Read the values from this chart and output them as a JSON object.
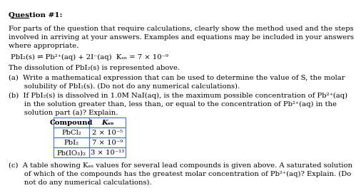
{
  "title": "Question #1:",
  "intro": "For parts of the question that require calculations, clearly show the method used and the steps\ninvolved in arriving at your answers. Examples and equations may be included in your answers\nwhere appropriate.",
  "equation": "PbI₂(s) ⇌ Pb²⁺(aq) + 2I⁻(aq)  Kₛₙ = 7 × 10⁻⁹",
  "dissolution": "The dissolution of PbI₂(s) is represented above.",
  "part_a": "(a)  Write a mathematical expression that can be used to determine the value of S, the molar\n       solubility of PbI₂(s). (Do not do any numerical calculations).",
  "part_b": "(b)  If PbI₂(s) is dissolved in 1.0M NaI(aq), is the maximum possible concentration of Pb²⁺(aq)\n       in the solution greater than, less than, or equal to the concentration of Pb²⁺(aq) in the\n       solution part (a)? Explain.",
  "table_headers": [
    "Compound",
    "Kₛₙ"
  ],
  "table_rows": [
    [
      "PbCl₂",
      "2 × 10⁻⁵"
    ],
    [
      "PbI₂",
      "7 × 10⁻⁹"
    ],
    [
      "Pb(IO₃)₂",
      "3 × 10⁻¹³"
    ]
  ],
  "part_c": "(c)  A table showing Kₛₙ values for several lead compounds is given above. A saturated solution\n       of which of the compounds has the greatest molar concentration of Pb²⁺(aq)? Explain. (Do\n       not do any numerical calculations).",
  "background": "#ffffff",
  "text_color": "#000000",
  "table_border_color": "#4472c4",
  "font_size": 7.2,
  "title_font_size": 7.5
}
